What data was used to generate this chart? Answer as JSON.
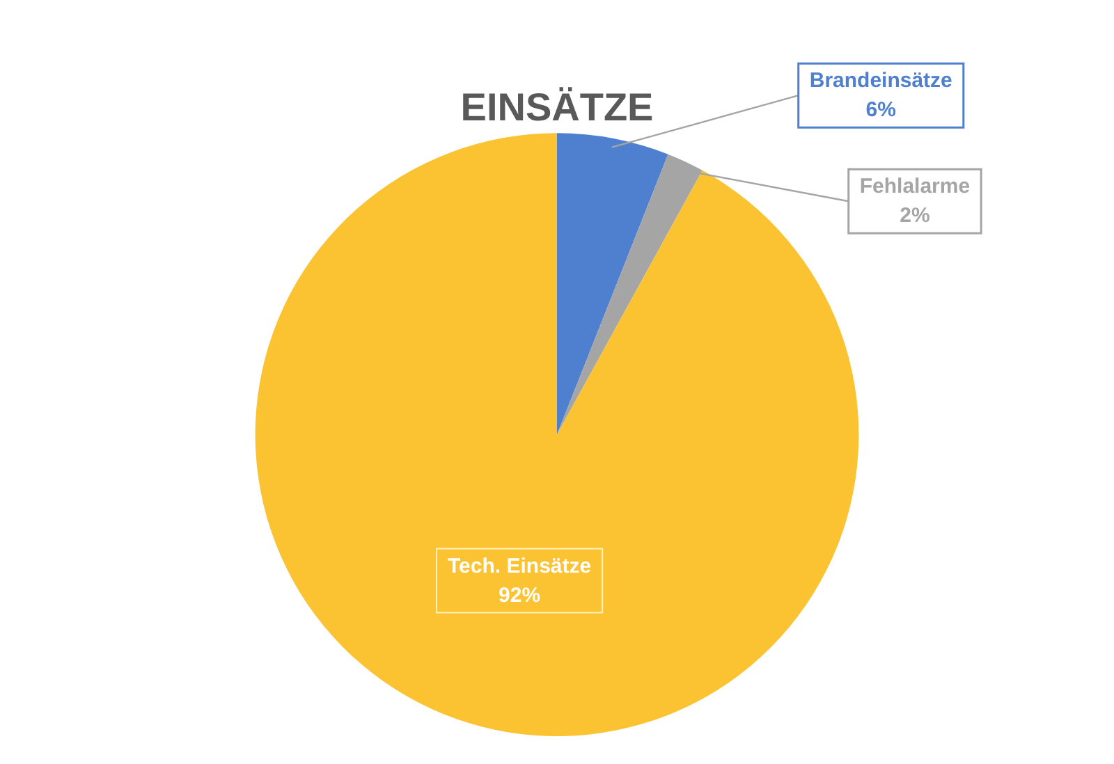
{
  "chart_data": {
    "type": "pie",
    "title": "EINSÄTZE",
    "categories": [
      "Brandeinsätze",
      "Fehlalarme",
      "Tech. Einsätze"
    ],
    "values": [
      6,
      2,
      92
    ],
    "colors": [
      "#4f7fcf",
      "#a5a5a5",
      "#fbc232"
    ],
    "value_labels": [
      "6%",
      "2%",
      "92%"
    ],
    "legend": false
  }
}
